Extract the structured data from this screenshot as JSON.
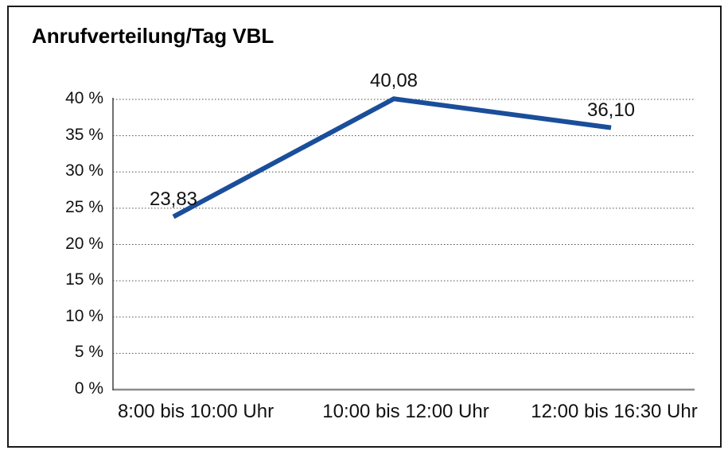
{
  "chart_data": {
    "type": "line",
    "title": "Anrufverteilung/Tag VBL",
    "categories": [
      "8:00 bis 10:00 Uhr",
      "10:00 bis 12:00 Uhr",
      "12:00 bis 16:30 Uhr"
    ],
    "series": [
      {
        "values": [
          23.83,
          40.08,
          36.1
        ]
      }
    ],
    "data_labels": [
      "23,83",
      "40,08",
      "36,10"
    ],
    "y_ticks": [
      "0 %",
      "5 %",
      "10 %",
      "15 %",
      "20 %",
      "25 %",
      "30 %",
      "35 %",
      "40 %"
    ],
    "ylim": [
      0,
      40
    ],
    "y_tick_step": 5,
    "xlabel": "",
    "ylabel": "",
    "grid": "horizontal-dotted",
    "legend": "none",
    "colors": {
      "line": "#1A4E9B",
      "grid": "#4D4D4D",
      "baseline": "#8C8C8C",
      "y_axis": "#404040",
      "frame_border": "#1A1A1A",
      "text": "#000000",
      "background": "#FFFFFF"
    }
  }
}
